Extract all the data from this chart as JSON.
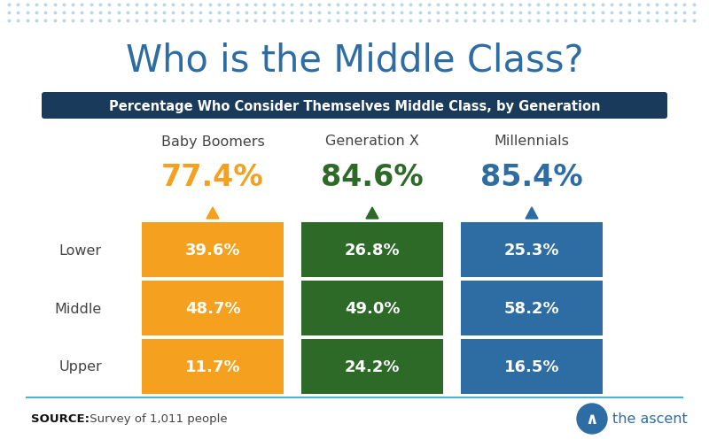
{
  "title": "Who is the Middle Class?",
  "subtitle": "Percentage Who Consider Themselves Middle Class, by Generation",
  "background_color": "#ffffff",
  "dot_color": "#b8d8e8",
  "title_color": "#2e6da4",
  "subtitle_bg": "#1a3a5c",
  "subtitle_text_color": "#ffffff",
  "generations": [
    "Baby Boomers",
    "Generation X",
    "Millennials"
  ],
  "gen_colors": [
    "#f5a01e",
    "#2d6a27",
    "#2e6da4"
  ],
  "overall_pcts": [
    "77.4%",
    "84.6%",
    "85.4%"
  ],
  "overall_colors": [
    "#f5a01e",
    "#2d6a27",
    "#2e6da4"
  ],
  "row_labels": [
    "Lower",
    "Middle",
    "Upper"
  ],
  "data_labels": [
    [
      "39.6%",
      "26.8%",
      "25.3%"
    ],
    [
      "48.7%",
      "49.0%",
      "58.2%"
    ],
    [
      "11.7%",
      "24.2%",
      "16.5%"
    ]
  ],
  "source_bold": "SOURCE:",
  "source_normal": " Survey of 1,011 people",
  "footer_line_color": "#4ab3d8"
}
